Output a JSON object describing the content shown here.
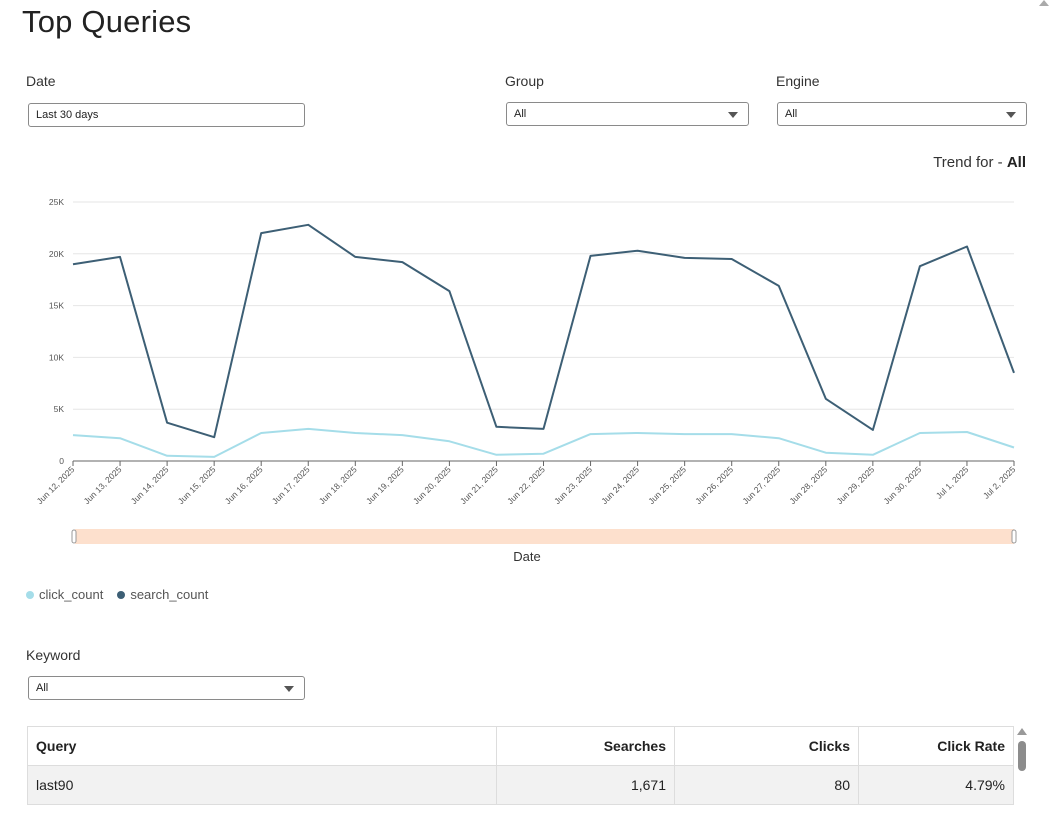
{
  "page": {
    "title": "Top Queries"
  },
  "filters": {
    "date": {
      "label": "Date",
      "value": "Last 30 days"
    },
    "group": {
      "label": "Group",
      "value": "All"
    },
    "engine": {
      "label": "Engine",
      "value": "All"
    },
    "keyword": {
      "label": "Keyword",
      "value": "All"
    }
  },
  "trend": {
    "prefix": "Trend for - ",
    "value": "All"
  },
  "colors": {
    "click_count": "#a5dde9",
    "search_count": "#3d5f75",
    "range_fill": "#fde0cd"
  },
  "chart_data": {
    "type": "line",
    "xlabel": "Date",
    "ylabel": "",
    "ylim": [
      0,
      25000
    ],
    "yticks": [
      0,
      5000,
      10000,
      15000,
      20000,
      25000
    ],
    "ytick_labels": [
      "0",
      "5K",
      "10K",
      "15K",
      "20K",
      "25K"
    ],
    "grid": true,
    "legend_position": "bottom-left",
    "categories": [
      "Jun 12, 2025",
      "Jun 13, 2025",
      "Jun 14, 2025",
      "Jun 15, 2025",
      "Jun 16, 2025",
      "Jun 17, 2025",
      "Jun 18, 2025",
      "Jun 19, 2025",
      "Jun 20, 2025",
      "Jun 21, 2025",
      "Jun 22, 2025",
      "Jun 23, 2025",
      "Jun 24, 2025",
      "Jun 25, 2025",
      "Jun 26, 2025",
      "Jun 27, 2025",
      "Jun 28, 2025",
      "Jun 29, 2025",
      "Jun 30, 2025",
      "Jul 1, 2025",
      "Jul 2, 2025"
    ],
    "series": [
      {
        "name": "click_count",
        "values": [
          2500,
          2200,
          500,
          400,
          2700,
          3100,
          2700,
          2500,
          1900,
          600,
          700,
          2600,
          2700,
          2600,
          2600,
          2200,
          800,
          600,
          2700,
          2800,
          1300
        ]
      },
      {
        "name": "search_count",
        "values": [
          19000,
          19700,
          3700,
          2300,
          22000,
          22800,
          19700,
          19200,
          16400,
          3300,
          3100,
          19800,
          20300,
          19600,
          19500,
          16900,
          6000,
          3000,
          18800,
          20700,
          8500
        ]
      }
    ]
  },
  "table": {
    "columns": [
      "Query",
      "Searches",
      "Clicks",
      "Click Rate"
    ],
    "rows": [
      [
        "last90",
        "1,671",
        "80",
        "4.79%"
      ]
    ]
  }
}
